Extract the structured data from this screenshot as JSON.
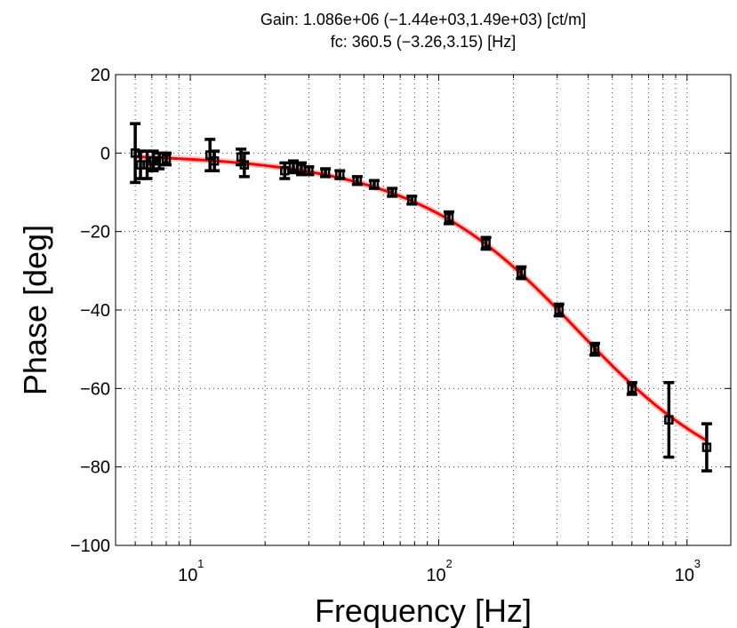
{
  "chart_data": {
    "type": "scatter",
    "title_lines": [
      "Gain: 1.086e+06 (−1.44e+03,1.49e+03) [ct/m]",
      "fc: 360.5 (−3.26,3.15) [Hz]"
    ],
    "xlabel": "Frequency [Hz]",
    "ylabel": "Phase [deg]",
    "xscale": "log",
    "xlim": [
      5,
      1500
    ],
    "ylim": [
      -100,
      20
    ],
    "grid": true,
    "x_ticks": [
      {
        "value": 10,
        "base": "10",
        "exp": "1"
      },
      {
        "value": 100,
        "base": "10",
        "exp": "2"
      },
      {
        "value": 1000,
        "base": "10",
        "exp": "3"
      }
    ],
    "y_ticks": [
      {
        "value": 20,
        "label": "20"
      },
      {
        "value": 0,
        "label": "0"
      },
      {
        "value": -20,
        "label": "−20"
      },
      {
        "value": -40,
        "label": "−40"
      },
      {
        "value": -60,
        "label": "−60"
      },
      {
        "value": -80,
        "label": "−80"
      },
      {
        "value": -100,
        "label": "−100"
      }
    ],
    "series": [
      {
        "kind": "errorbar",
        "color": "#000000",
        "points": [
          {
            "x": 6.0,
            "y": 0.0,
            "err": 7.5
          },
          {
            "x": 6.3,
            "y": -3.0,
            "err": 3.5
          },
          {
            "x": 6.7,
            "y": -3.0,
            "err": 3.5
          },
          {
            "x": 7.1,
            "y": -2.0,
            "err": 2.5
          },
          {
            "x": 7.5,
            "y": -2.0,
            "err": 2.0
          },
          {
            "x": 8.0,
            "y": -1.5,
            "err": 1.5
          },
          {
            "x": 12.0,
            "y": -0.5,
            "err": 4.0
          },
          {
            "x": 12.5,
            "y": -2.0,
            "err": 2.5
          },
          {
            "x": 16.0,
            "y": -1.0,
            "err": 2.0
          },
          {
            "x": 16.5,
            "y": -3.0,
            "err": 3.0
          },
          {
            "x": 24.0,
            "y": -4.5,
            "err": 2.0
          },
          {
            "x": 26.0,
            "y": -3.5,
            "err": 1.5
          },
          {
            "x": 28.0,
            "y": -4.0,
            "err": 1.5
          },
          {
            "x": 30.0,
            "y": -4.5,
            "err": 1.0
          },
          {
            "x": 35.0,
            "y": -5.0,
            "err": 1.0
          },
          {
            "x": 40.0,
            "y": -5.5,
            "err": 1.0
          },
          {
            "x": 47.0,
            "y": -7.0,
            "err": 1.0
          },
          {
            "x": 55.0,
            "y": -8.0,
            "err": 1.0
          },
          {
            "x": 65.0,
            "y": -10.0,
            "err": 1.0
          },
          {
            "x": 78.0,
            "y": -12.0,
            "err": 1.0
          },
          {
            "x": 110.0,
            "y": -16.5,
            "err": 1.5
          },
          {
            "x": 155.0,
            "y": -23.0,
            "err": 1.5
          },
          {
            "x": 215.0,
            "y": -30.5,
            "err": 1.5
          },
          {
            "x": 305.0,
            "y": -40.0,
            "err": 1.5
          },
          {
            "x": 425.0,
            "y": -50.0,
            "err": 1.5
          },
          {
            "x": 600.0,
            "y": -60.0,
            "err": 1.5
          },
          {
            "x": 845.0,
            "y": -68.0,
            "err": 9.5
          },
          {
            "x": 1200.0,
            "y": -75.0,
            "err": 6.0
          }
        ]
      },
      {
        "kind": "fit",
        "color": "#ff0000",
        "gain": 1086000.0,
        "fc": 360.5,
        "x_range": [
          6,
          1200
        ]
      }
    ]
  }
}
